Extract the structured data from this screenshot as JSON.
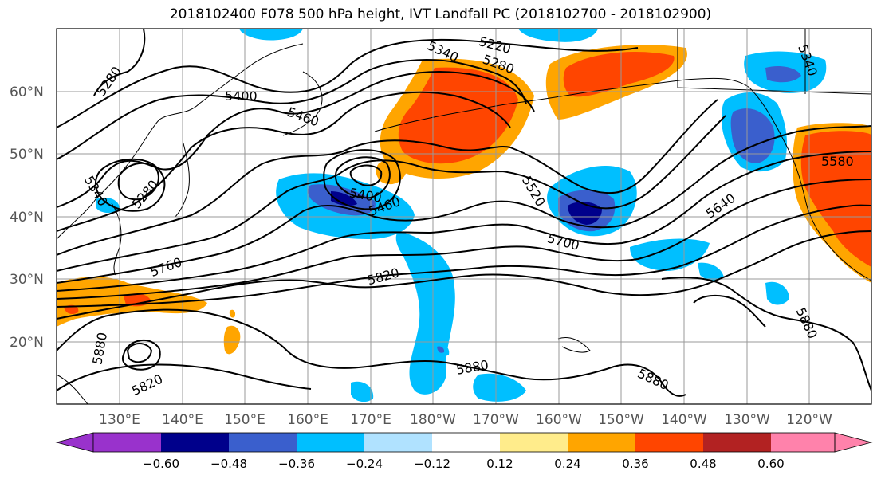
{
  "title": "2018102400 F078 500 hPa height, IVT Landfall PC (2018102700 - 2018102900)",
  "map": {
    "lat_labels": [
      "60°N",
      "50°N",
      "40°N",
      "30°N",
      "20°N"
    ],
    "lon_labels": [
      "130°E",
      "140°E",
      "150°E",
      "160°E",
      "170°E",
      "180°W",
      "170°W",
      "160°W",
      "150°W",
      "140°W",
      "130°W",
      "120°W"
    ],
    "contour_labels": [
      "5280",
      "5400",
      "5460",
      "5340",
      "5280",
      "5340",
      "5220",
      "5280",
      "5340",
      "5400",
      "5460",
      "5520",
      "5580",
      "5640",
      "5700",
      "5760",
      "5820",
      "5820",
      "5880",
      "5880",
      "5880",
      "5880"
    ],
    "colors": {
      "deep_purple": "#9932cc",
      "navy": "#00008b",
      "blue": "#3a5fcd",
      "sky": "#00bfff",
      "light_sky": "#b0e2ff",
      "yellow": "#ffec8b",
      "orange": "#ffa500",
      "red_orange": "#ff4500",
      "dark_red": "#b22222",
      "pink": "#ff82ab"
    }
  },
  "colorbar": {
    "ticks": [
      "−0.60",
      "−0.48",
      "−0.36",
      "−0.24",
      "−0.12",
      "0.12",
      "0.24",
      "0.36",
      "0.48",
      "0.60"
    ],
    "colors": [
      "#9932cc",
      "#00008b",
      "#3a5fcd",
      "#00bfff",
      "#b0e2ff",
      "#ffffff",
      "#ffec8b",
      "#ffa500",
      "#ff4500",
      "#b22222",
      "#ff82ab"
    ]
  }
}
